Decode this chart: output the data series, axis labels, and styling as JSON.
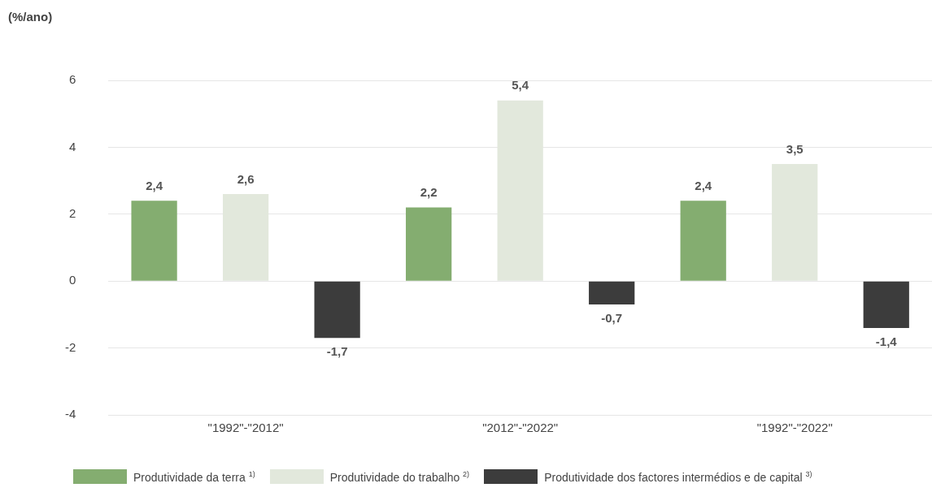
{
  "chart_data": {
    "type": "bar",
    "ylabel": "(%/ano)",
    "categories": [
      "\"1992\"-\"2012\"",
      "\"2012\"-\"2022\"",
      "\"1992\"-\"2022\""
    ],
    "series": [
      {
        "name": "Produtividade da terra $^{1)}$",
        "color": "#84ad70",
        "values": [
          2.4,
          2.2,
          2.4
        ],
        "value_labels": [
          "2,4",
          "2,2",
          "2,4"
        ]
      },
      {
        "name": "Produtividade do trabalho $^{2)}$",
        "color": "#e2e8dc",
        "values": [
          2.6,
          5.4,
          3.5
        ],
        "value_labels": [
          "2,6",
          "5,4",
          "3,5"
        ]
      },
      {
        "name": "Produtividade dos factores intermédios e de capital $^{3)}$",
        "color": "#3c3c3c",
        "values": [
          -1.7,
          -0.7,
          -1.4
        ],
        "value_labels": [
          "-1,7",
          "-0,7",
          "-1,4"
        ]
      }
    ],
    "ylim": [
      -4,
      6
    ],
    "yticks": [
      -4,
      -2,
      0,
      2,
      4,
      6
    ],
    "grid": "y",
    "legend": "bottom"
  }
}
